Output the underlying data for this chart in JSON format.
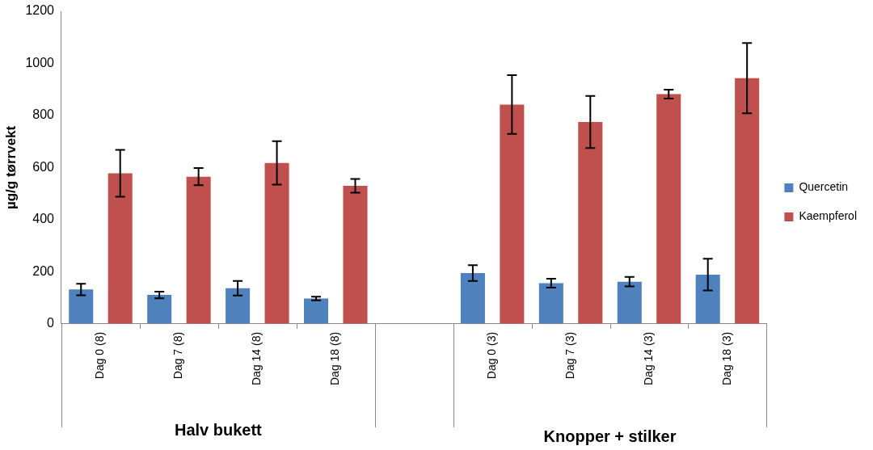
{
  "chart_data": {
    "type": "bar",
    "ylabel": "µg/g tørrvekt",
    "categories": [
      "Dag 0 (8)",
      "Dag 7 (8)",
      "Dag 14 (8)",
      "Dag 18 (8)",
      null,
      "Dag 0 (3)",
      "Dag 7 (3)",
      "Dag 14 (3)",
      "Dag 18 (3)"
    ],
    "series": [
      {
        "name": "Quercetin",
        "color": "#4f81bd",
        "values": [
          132,
          111,
          137,
          97,
          null,
          195,
          156,
          162,
          189
        ],
        "errors": [
          22,
          13,
          28,
          7,
          null,
          30,
          17,
          18,
          61
        ]
      },
      {
        "name": "Kaempferol",
        "color": "#c0504d",
        "values": [
          578,
          565,
          618,
          530,
          null,
          842,
          775,
          882,
          943
        ],
        "errors": [
          90,
          33,
          83,
          26,
          null,
          113,
          100,
          17,
          135
        ]
      }
    ],
    "ylim": [
      0,
      1200
    ],
    "yticks": [
      0,
      200,
      400,
      600,
      800,
      1000,
      1200
    ],
    "grid": false,
    "legend": "right",
    "annotations": [
      "Halv bukett",
      "Knopper + stilker"
    ]
  }
}
